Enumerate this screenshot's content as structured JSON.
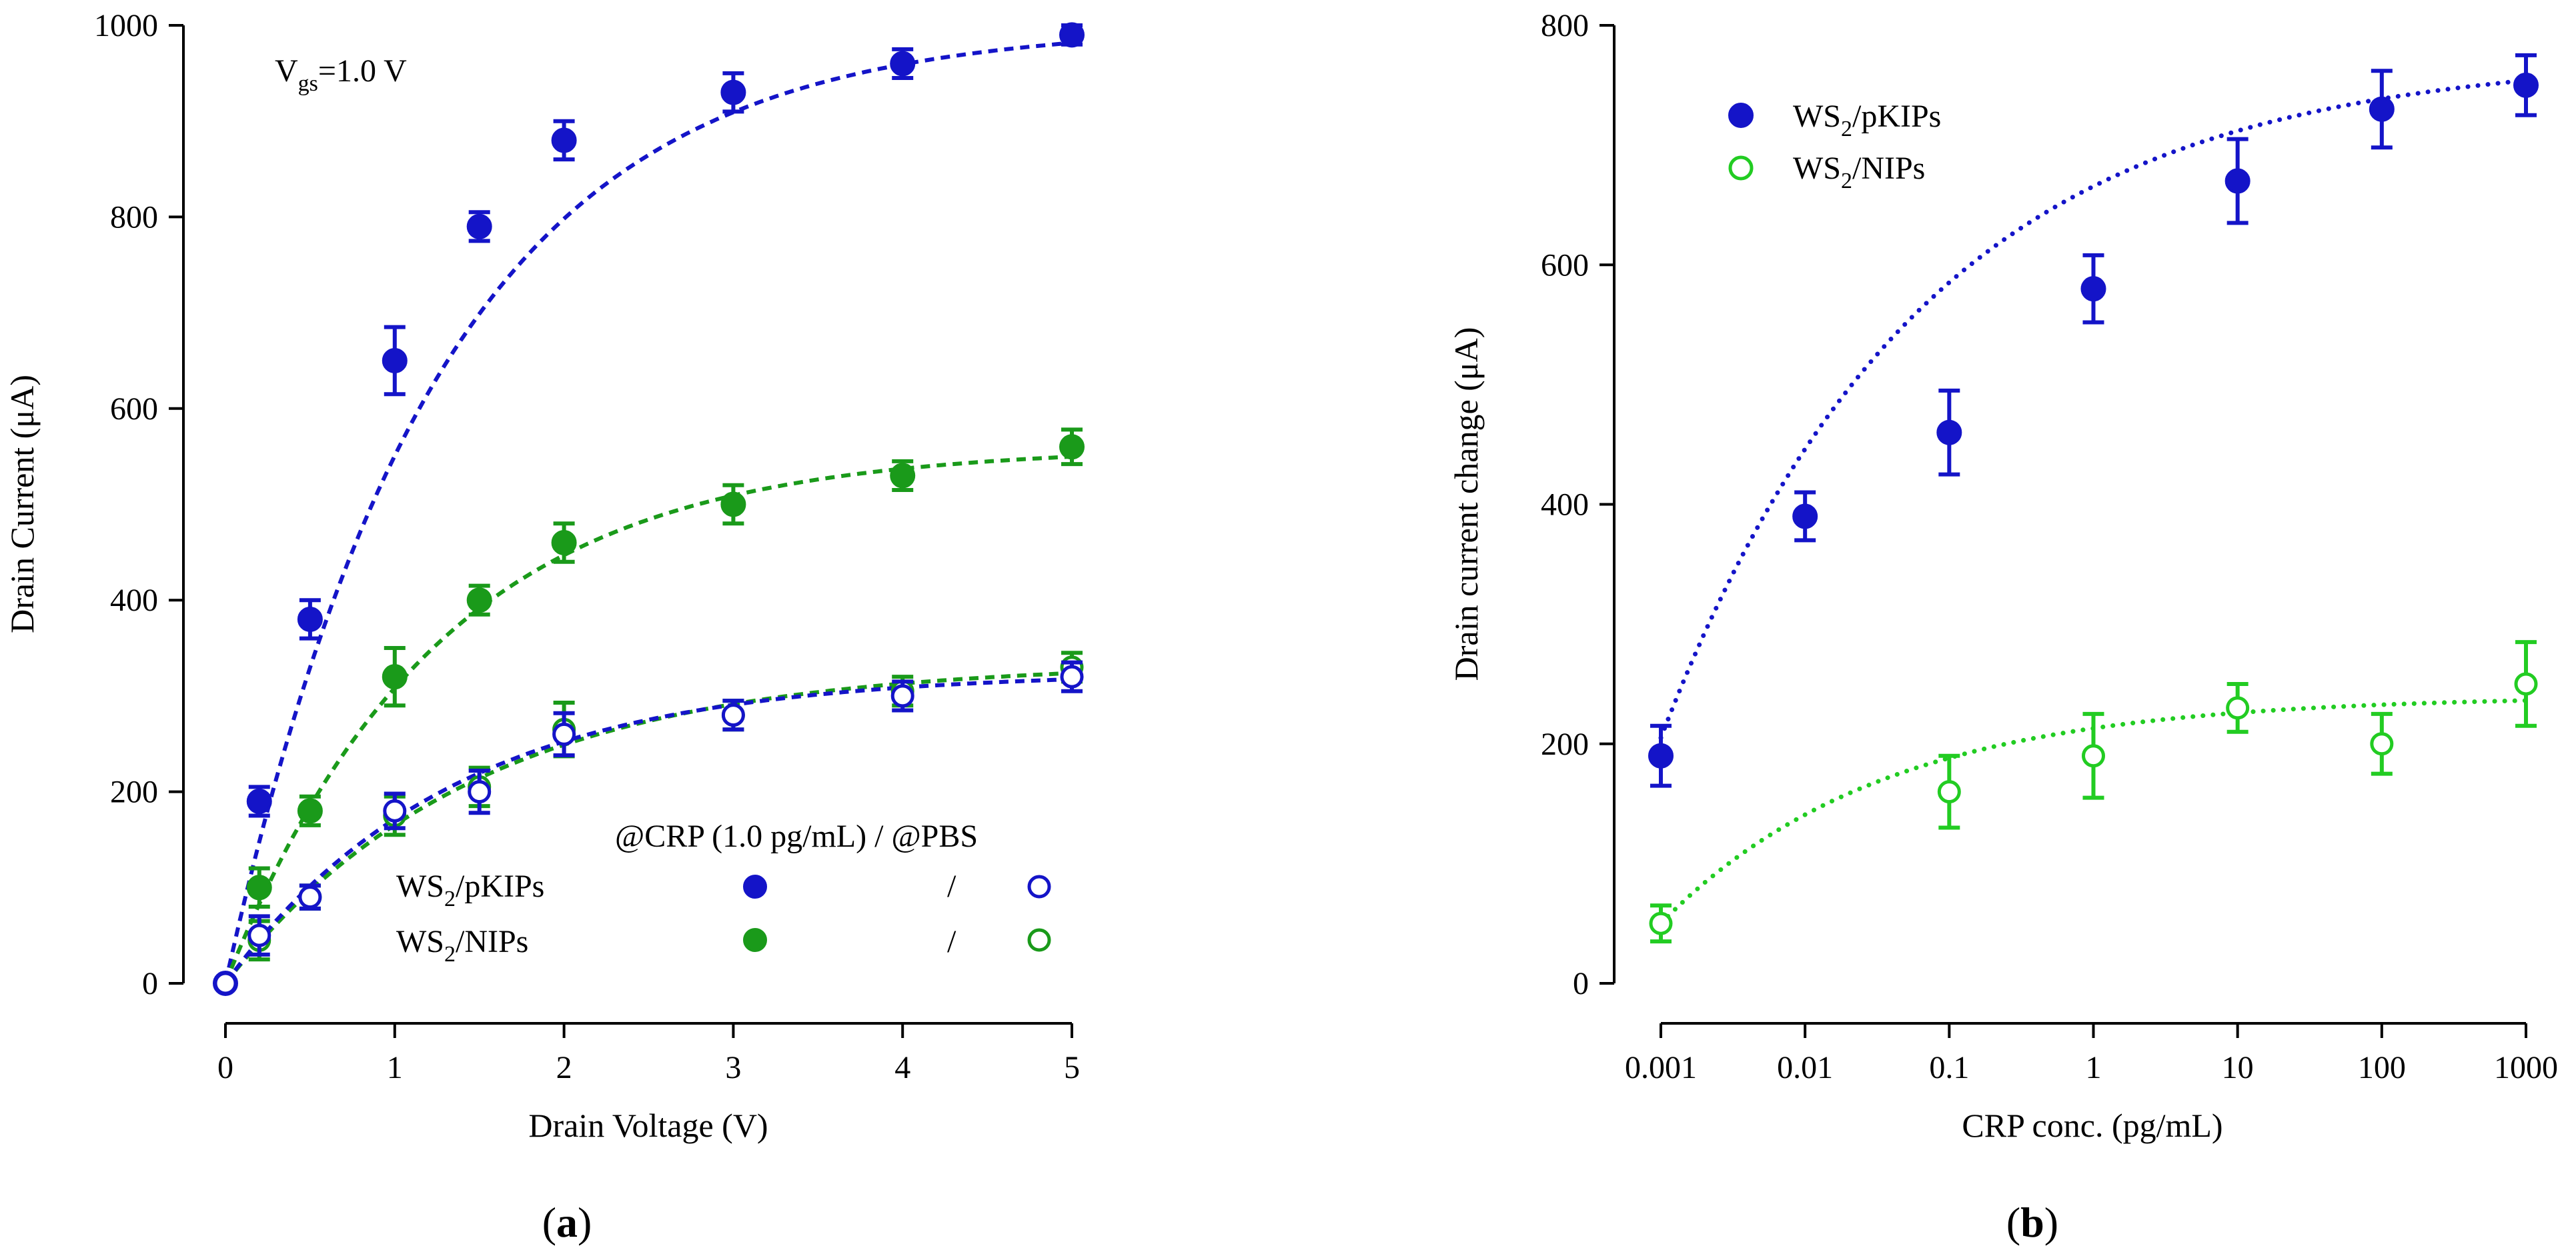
{
  "colors": {
    "blue": "#1414c8",
    "green": "#1a9a1a",
    "lightgreen": "#22cc22"
  },
  "chart_data": [
    {
      "id": "a",
      "type": "scatter",
      "panel_label": "(a)",
      "xlabel": "Drain Voltage (V)",
      "ylabel": "Drain Current (μA)",
      "xlim": [
        0,
        5
      ],
      "ylim": [
        0,
        1000
      ],
      "xticks": [
        0,
        1,
        2,
        3,
        4,
        5
      ],
      "yticks": [
        0,
        200,
        400,
        600,
        800,
        1000
      ],
      "annotation": {
        "main": "V",
        "sub": "gs",
        "rest": "=1.0 V"
      },
      "legend": {
        "header": "@CRP (1.0 pg/mL) / @PBS",
        "separator": "/",
        "rows": [
          {
            "base": "WS",
            "sub": "2",
            "rest": "/pKIPs"
          },
          {
            "base": "WS",
            "sub": "2",
            "rest": "/NIPs"
          }
        ]
      },
      "series": [
        {
          "name": "WS2/pKIPs @CRP",
          "color": "#1414c8",
          "filled": true,
          "x": [
            0,
            0.2,
            0.5,
            1,
            1.5,
            2,
            3,
            4,
            5
          ],
          "y": [
            0,
            190,
            380,
            650,
            790,
            880,
            930,
            960,
            990
          ],
          "err": [
            0,
            15,
            20,
            35,
            15,
            20,
            20,
            15,
            10
          ],
          "fit": {
            "ymax": 1000,
            "k": 0.8
          }
        },
        {
          "name": "WS2/NIPs @CRP",
          "color": "#1a9a1a",
          "filled": true,
          "x": [
            0.2,
            0.5,
            1,
            1.5,
            2,
            3,
            4,
            5
          ],
          "y": [
            100,
            180,
            320,
            400,
            460,
            500,
            530,
            560
          ],
          "err": [
            20,
            15,
            30,
            15,
            20,
            20,
            15,
            18
          ],
          "fit": {
            "ymax": 560,
            "k": 0.8
          }
        },
        {
          "name": "WS2/NIPs @PBS",
          "color": "#1a9a1a",
          "filled": false,
          "x": [
            0.2,
            0.5,
            1,
            1.5,
            2,
            3,
            4,
            5
          ],
          "y": [
            45,
            90,
            175,
            205,
            265,
            280,
            305,
            330
          ],
          "err": [
            20,
            12,
            20,
            20,
            28,
            15,
            15,
            15
          ],
          "fit": {
            "ymax": 335,
            "k": 0.68
          }
        },
        {
          "name": "WS2/pKIPs @PBS",
          "color": "#1414c8",
          "filled": false,
          "x": [
            0.2,
            0.5,
            1,
            1.5,
            2,
            3,
            4,
            5
          ],
          "y": [
            50,
            90,
            180,
            200,
            260,
            280,
            300,
            320
          ],
          "err": [
            20,
            12,
            18,
            22,
            22,
            15,
            15,
            15
          ],
          "fit": {
            "ymax": 325,
            "k": 0.75
          }
        }
      ]
    },
    {
      "id": "b",
      "type": "scatter",
      "panel_label": "(b)",
      "xlabel": "CRP conc. (pg/mL)",
      "ylabel": "Drain current change (μA)",
      "xscale": "log",
      "xticks": [
        0.001,
        0.01,
        0.1,
        1,
        10,
        100,
        1000
      ],
      "xtick_labels": [
        "0.001",
        "0.01",
        "0.1",
        "1",
        "10",
        "100",
        "1000"
      ],
      "ylim": [
        0,
        800
      ],
      "yticks": [
        0,
        200,
        400,
        600,
        800
      ],
      "legend": {
        "rows": [
          {
            "base": "WS",
            "sub": "2",
            "rest": "/pKIPs"
          },
          {
            "base": "WS",
            "sub": "2",
            "rest": "/NIPs"
          }
        ]
      },
      "series": [
        {
          "name": "WS2/pKIPs",
          "color": "#1414c8",
          "filled": true,
          "x": [
            0.001,
            0.01,
            0.1,
            1,
            10,
            100,
            1000
          ],
          "y": [
            190,
            390,
            460,
            580,
            670,
            730,
            750
          ],
          "err": [
            25,
            20,
            35,
            28,
            35,
            32,
            25
          ],
          "fit": {
            "y0": 205,
            "ymax": 775,
            "k": 0.55
          }
        },
        {
          "name": "WS2/NIPs",
          "color": "#22cc22",
          "filled": false,
          "x": [
            0.001,
            0.1,
            1,
            10,
            100,
            1000
          ],
          "y": [
            50,
            160,
            190,
            230,
            200,
            250
          ],
          "err": [
            15,
            30,
            35,
            20,
            25,
            35
          ],
          "fit": {
            "y0": 50,
            "ymax": 240,
            "k": 0.65
          }
        }
      ]
    }
  ]
}
